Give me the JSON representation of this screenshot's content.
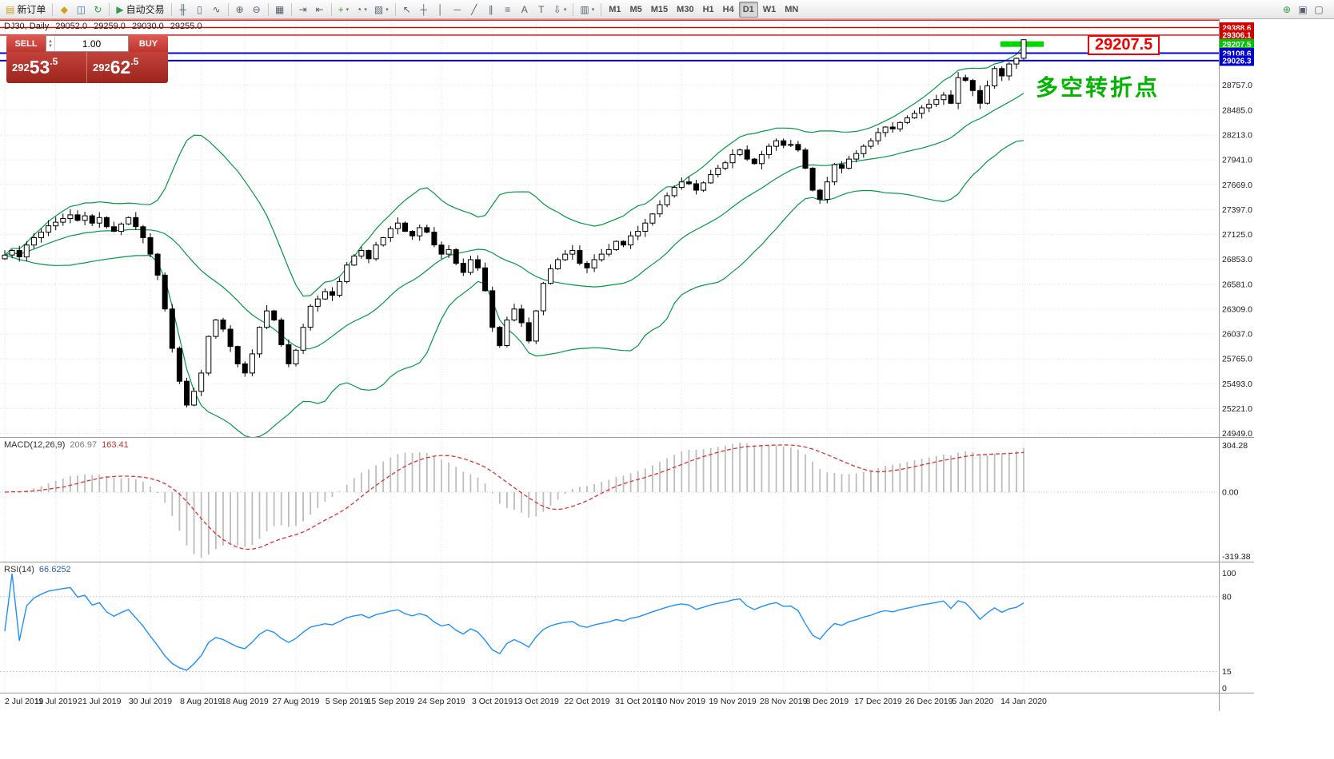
{
  "toolbar": {
    "groups": [
      {
        "name": "order",
        "items": [
          {
            "name": "new-order-button",
            "glyph": "▤",
            "glyph_color": "#c9a227",
            "label": "新订单"
          }
        ]
      },
      {
        "name": "account-tools",
        "items": [
          {
            "name": "gold-icon",
            "glyph": "◆",
            "glyph_color": "#d4a017"
          },
          {
            "name": "accounts-icon",
            "glyph": "◫",
            "glyph_color": "#3a6ea5"
          },
          {
            "name": "refresh-icon",
            "glyph": "↻",
            "glyph_color": "#2f9e44"
          }
        ]
      },
      {
        "name": "auto-trading",
        "items": [
          {
            "name": "auto-trading-button",
            "glyph": "▶",
            "glyph_color": "#2f9e44",
            "label": "自动交易"
          }
        ]
      },
      {
        "name": "chart-modes",
        "items": [
          {
            "name": "bar-chart-icon",
            "glyph": "╫"
          },
          {
            "name": "candlestick-chart-icon",
            "glyph": "▯"
          },
          {
            "name": "line-chart-icon",
            "glyph": "∿"
          }
        ]
      },
      {
        "name": "zoom",
        "items": [
          {
            "name": "zoom-in-icon",
            "glyph": "⊕"
          },
          {
            "name": "zoom-out-icon",
            "glyph": "⊖"
          }
        ]
      },
      {
        "name": "window-tools",
        "items": [
          {
            "name": "tile-windows-icon",
            "glyph": "▦"
          }
        ]
      },
      {
        "name": "scroll-tools",
        "items": [
          {
            "name": "auto-scroll-icon",
            "glyph": "⇥"
          },
          {
            "name": "chart-shift-icon",
            "glyph": "⇤"
          }
        ]
      },
      {
        "name": "insert-tools",
        "items": [
          {
            "name": "indicators-icon",
            "glyph": "+",
            "glyph_color": "#2f9e44",
            "dropdown": true
          },
          {
            "name": "periods-icon",
            "glyph": "◔",
            "dropdown": true
          },
          {
            "name": "templates-icon",
            "glyph": "▨",
            "dropdown": true
          }
        ]
      },
      {
        "name": "line-studies",
        "items": [
          {
            "name": "cursor-icon",
            "glyph": "↖"
          },
          {
            "name": "crosshair-icon",
            "glyph": "┼"
          },
          {
            "name": "vertical-line-icon",
            "glyph": "│"
          },
          {
            "name": "horizontal-line-icon",
            "glyph": "─"
          },
          {
            "name": "trendline-icon",
            "glyph": "╱"
          },
          {
            "name": "equidistant-channel-icon",
            "glyph": "∥"
          },
          {
            "name": "fibonacci-icon",
            "glyph": "≡"
          },
          {
            "name": "text-icon",
            "glyph": "A"
          },
          {
            "name": "text-label-icon",
            "glyph": "T"
          },
          {
            "name": "arrows-icon",
            "glyph": "⇩",
            "dropdown": true
          }
        ]
      },
      {
        "name": "shapes",
        "items": [
          {
            "name": "shapes-icon",
            "glyph": "▥",
            "dropdown": true
          }
        ]
      },
      {
        "name": "timeframes",
        "items": [
          {
            "name": "timeframe-m1",
            "label": "M1"
          },
          {
            "name": "timeframe-m5",
            "label": "M5"
          },
          {
            "name": "timeframe-m15",
            "label": "M15"
          },
          {
            "name": "timeframe-m30",
            "label": "M30"
          },
          {
            "name": "timeframe-h1",
            "label": "H1"
          },
          {
            "name": "timeframe-h4",
            "label": "H4"
          },
          {
            "name": "timeframe-d1",
            "label": "D1",
            "active": true
          },
          {
            "name": "timeframe-w1",
            "label": "W1"
          },
          {
            "name": "timeframe-mn",
            "label": "MN"
          }
        ]
      }
    ],
    "right_items": [
      {
        "name": "find-symbol-icon",
        "glyph": "⊕",
        "glyph_color": "#2f9e44"
      },
      {
        "name": "new-window-icon",
        "glyph": "▣"
      },
      {
        "name": "window-list-icon",
        "glyph": "▢"
      }
    ]
  },
  "one_click": {
    "sell_label": "SELL",
    "buy_label": "BUY",
    "volume": "1.00",
    "sell_price": {
      "prefix": "292",
      "big": "53",
      "suffix": ".5"
    },
    "buy_price": {
      "prefix": "292",
      "big": "62",
      "suffix": ".5"
    },
    "colors": {
      "button": "#d8453e",
      "panel": "#b5332c"
    }
  },
  "chart": {
    "info": {
      "symbol_period": "DJ30, Daily",
      "open": "29052.0",
      "high": "29259.0",
      "low": "29030.0",
      "close": "29255.0"
    },
    "big_price_label": "29207.5",
    "annotation": "多空转折点",
    "price_top": 29480,
    "price_bottom": 24910,
    "levels": [
      {
        "price": 29470.0,
        "color": "#e80000",
        "width": 1.4
      },
      {
        "price": 29388.6,
        "color": "#e80000",
        "width": 1.4,
        "badge": "#d40000",
        "label": "29388.6"
      },
      {
        "price": 29306.1,
        "color": "#e80000",
        "width": 1.4,
        "badge": "#d40000",
        "label": "29306.1"
      },
      {
        "price": 29207.5,
        "color": "#00d800",
        "segment": true,
        "badge": "#00c400",
        "label": "29207.5"
      },
      {
        "price": 29108.6,
        "color": "#0000e0",
        "width": 2,
        "badge": "#0000d0",
        "label": "29108.6"
      },
      {
        "price": 29026.3,
        "color": "#0000e0",
        "width": 2,
        "badge": "#0000d0",
        "label": "29026.3"
      }
    ],
    "y_ticks": [
      "28757.0",
      "28485.0",
      "28213.0",
      "27941.0",
      "27669.0",
      "27397.0",
      "27125.0",
      "26853.0",
      "26581.0",
      "26309.0",
      "26037.0",
      "25765.0",
      "25493.0",
      "25221.0",
      "24949.0"
    ]
  },
  "macd_panel": {
    "title": "MACD(12,26,9)",
    "value_main": "206.97",
    "value_signal": "163.41",
    "axis_max": "304.28",
    "axis_zero": "0.00",
    "axis_min": "-319.38"
  },
  "rsi_panel": {
    "title": "RSI(14)",
    "value": "66.6252",
    "axis": [
      "100",
      "80",
      "15",
      "0"
    ],
    "levels": [
      80,
      15
    ]
  },
  "x_axis": {
    "labels": [
      "2 Jul 2019",
      "11 Jul 2019",
      "21 Jul 2019",
      "30 Jul 2019",
      "8 Aug 2019",
      "18 Aug 2019",
      "27 Aug 2019",
      "5 Sep 2019",
      "15 Sep 2019",
      "24 Sep 2019",
      "3 Oct 2019",
      "13 Oct 2019",
      "22 Oct 2019",
      "31 Oct 2019",
      "10 Nov 2019",
      "19 Nov 2019",
      "28 Nov 2019",
      "8 Dec 2019",
      "17 Dec 2019",
      "26 Dec 2019",
      "5 Jan 2020",
      "14 Jan 2020"
    ]
  },
  "chart_data": {
    "type": "candlestick",
    "symbol": "DJ30",
    "timeframe": "Daily",
    "current_bar": {
      "open": 29052.0,
      "high": 29259.0,
      "low": 29030.0,
      "close": 29255.0
    },
    "bid": "29253.5",
    "ask": "29262.5",
    "closes": [
      26900,
      26950,
      26880,
      27010,
      27090,
      27150,
      27220,
      27260,
      27300,
      27340,
      27280,
      27330,
      27250,
      27310,
      27210,
      27160,
      27240,
      27310,
      27210,
      27090,
      26910,
      26680,
      26310,
      25880,
      25520,
      25260,
      25410,
      25610,
      26010,
      26190,
      26090,
      25900,
      25710,
      25610,
      25820,
      26110,
      26290,
      26190,
      25920,
      25710,
      25860,
      26110,
      26340,
      26420,
      26500,
      26460,
      26610,
      26790,
      26890,
      26950,
      26860,
      27010,
      27090,
      27190,
      27250,
      27160,
      27110,
      27200,
      27150,
      27010,
      26910,
      26960,
      26810,
      26710,
      26850,
      26760,
      26510,
      26110,
      25910,
      26190,
      26310,
      26160,
      25960,
      26290,
      26590,
      26750,
      26850,
      26910,
      26950,
      26810,
      26760,
      26850,
      26910,
      26960,
      27050,
      27010,
      27110,
      27160,
      27250,
      27350,
      27450,
      27550,
      27640,
      27700,
      27680,
      27610,
      27690,
      27780,
      27850,
      27910,
      28000,
      28050,
      27950,
      27900,
      28000,
      28090,
      28150,
      28100,
      28110,
      28050,
      27850,
      27610,
      27510,
      27700,
      27890,
      27850,
      27950,
      28010,
      28090,
      28150,
      28240,
      28300,
      28280,
      28350,
      28400,
      28450,
      28510,
      28550,
      28600,
      28650,
      28560,
      28840,
      28810,
      28700,
      28560,
      28750,
      28940,
      28860,
      28990,
      29052,
      29255
    ],
    "indicators": {
      "bollinger": {
        "period": 20,
        "deviation": 2,
        "color": "#009944"
      },
      "macd": {
        "fast": 12,
        "slow": 26,
        "signal": 9,
        "values": [
          206.97,
          163.41
        ],
        "axis_range": [
          -319.38,
          304.28
        ],
        "histogram_color": "#bdbdbd",
        "signal_color": "#e03030"
      },
      "rsi": {
        "period": 14,
        "value": 66.6252,
        "color": "#1e90ff",
        "levels": [
          80,
          15
        ]
      }
    }
  }
}
